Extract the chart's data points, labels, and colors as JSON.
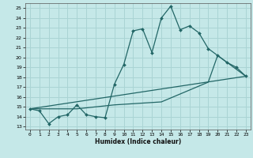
{
  "xlabel": "Humidex (Indice chaleur)",
  "xlim": [
    -0.5,
    23.5
  ],
  "ylim": [
    12.7,
    25.5
  ],
  "yticks": [
    13,
    14,
    15,
    16,
    17,
    18,
    19,
    20,
    21,
    22,
    23,
    24,
    25
  ],
  "xticks": [
    0,
    1,
    2,
    3,
    4,
    5,
    6,
    7,
    8,
    9,
    10,
    11,
    12,
    13,
    14,
    15,
    16,
    17,
    18,
    19,
    20,
    21,
    22,
    23
  ],
  "bg_color": "#c5e8e8",
  "grid_color": "#aad4d4",
  "line_color": "#226666",
  "line1_x": [
    0,
    1,
    2,
    3,
    4,
    5,
    6,
    7,
    8,
    9,
    10,
    11,
    12,
    13,
    14,
    15,
    16,
    17,
    18,
    19,
    20,
    21,
    22,
    23
  ],
  "line1_y": [
    14.8,
    14.6,
    13.3,
    14.0,
    14.2,
    15.2,
    14.2,
    14.0,
    13.9,
    17.3,
    19.3,
    22.7,
    22.9,
    20.5,
    24.0,
    25.2,
    22.8,
    23.2,
    22.5,
    20.9,
    20.2,
    19.5,
    19.0,
    18.1
  ],
  "line2_x": [
    0,
    23
  ],
  "line2_y": [
    14.8,
    18.1
  ],
  "line3_x": [
    0,
    5,
    9,
    14,
    19,
    20,
    23
  ],
  "line3_y": [
    14.8,
    14.8,
    15.2,
    15.5,
    17.5,
    20.2,
    18.1
  ]
}
